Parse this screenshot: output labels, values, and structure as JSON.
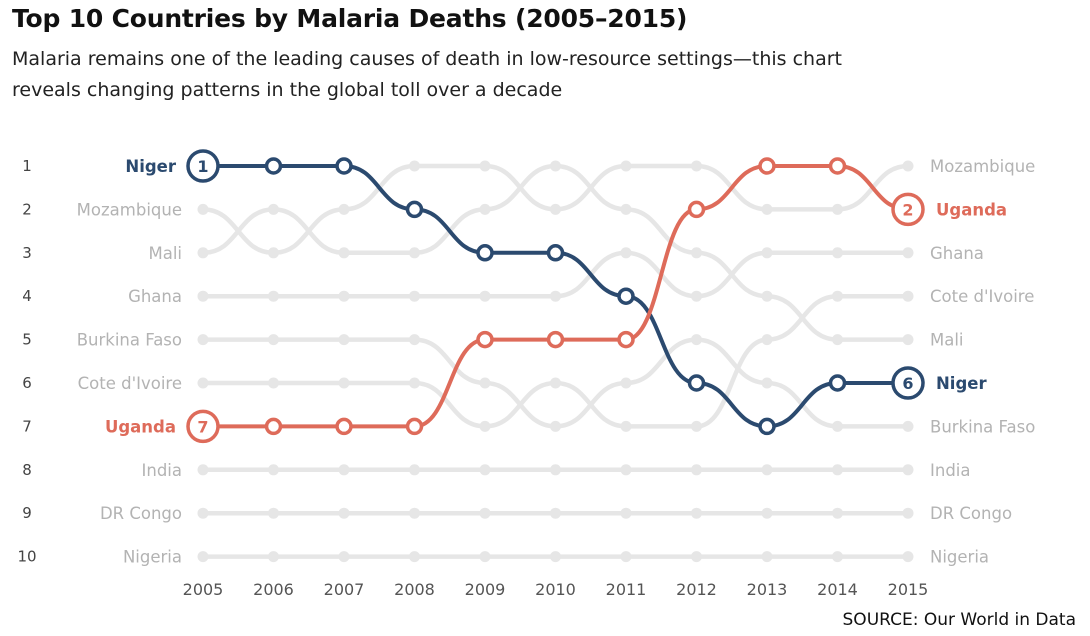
{
  "title": "Top 10 Countries by Malaria Deaths (2005–2015)",
  "subtitle": "Malaria remains one of the leading causes of death in low-resource settings—this chart reveals changing patterns in the global toll over a decade",
  "source": "SOURCE: Our World in Data",
  "colors": {
    "niger": "#2b4a6f",
    "uganda": "#de6b5a",
    "background_lines": "#e6e6e6",
    "background_labels": "#b3b3b3",
    "rank_labels": "#444444",
    "year_labels": "#555555"
  },
  "chart_data": {
    "type": "line",
    "subtype": "bump",
    "x": [
      2005,
      2006,
      2007,
      2008,
      2009,
      2010,
      2011,
      2012,
      2013,
      2014,
      2015
    ],
    "ranks": [
      1,
      2,
      3,
      4,
      5,
      6,
      7,
      8,
      9,
      10
    ],
    "y_axis": "rank (1 at top)",
    "left_labels": [
      "Niger",
      "Mozambique",
      "Mali",
      "Ghana",
      "Burkina Faso",
      "Cote d'Ivoire",
      "Uganda",
      "India",
      "DR Congo",
      "Nigeria"
    ],
    "right_labels": [
      "Mozambique",
      "Uganda",
      "Ghana",
      "Cote d'Ivoire",
      "Mali",
      "Niger",
      "Burkina Faso",
      "India",
      "DR Congo",
      "Nigeria"
    ],
    "highlighted_series": [
      {
        "name": "Niger",
        "color": "#2b4a6f",
        "ranks": [
          1,
          1,
          1,
          2,
          3,
          3,
          4,
          6,
          7,
          6,
          6
        ]
      },
      {
        "name": "Uganda",
        "color": "#de6b5a",
        "ranks": [
          7,
          7,
          7,
          7,
          5,
          5,
          5,
          2,
          1,
          1,
          2
        ]
      }
    ],
    "background_series": [
      {
        "name": "Mozambique",
        "ranks": [
          2,
          3,
          2,
          1,
          1,
          2,
          1,
          1,
          2,
          2,
          1
        ]
      },
      {
        "name": "Mali",
        "ranks": [
          3,
          2,
          3,
          3,
          2,
          1,
          2,
          3,
          4,
          5,
          5
        ]
      },
      {
        "name": "Ghana",
        "ranks": [
          4,
          4,
          4,
          4,
          4,
          4,
          3,
          4,
          3,
          3,
          3
        ]
      },
      {
        "name": "Burkina Faso",
        "ranks": [
          5,
          5,
          5,
          5,
          6,
          7,
          6,
          5,
          6,
          7,
          7
        ]
      },
      {
        "name": "Cote d'Ivoire",
        "ranks": [
          6,
          6,
          6,
          6,
          7,
          6,
          7,
          7,
          5,
          4,
          4
        ]
      },
      {
        "name": "India",
        "ranks": [
          8,
          8,
          8,
          8,
          8,
          8,
          8,
          8,
          8,
          8,
          8
        ]
      },
      {
        "name": "DR Congo",
        "ranks": [
          9,
          9,
          9,
          9,
          9,
          9,
          9,
          9,
          9,
          9,
          9
        ]
      },
      {
        "name": "Nigeria",
        "ranks": [
          10,
          10,
          10,
          10,
          10,
          10,
          10,
          10,
          10,
          10,
          10
        ]
      }
    ]
  }
}
